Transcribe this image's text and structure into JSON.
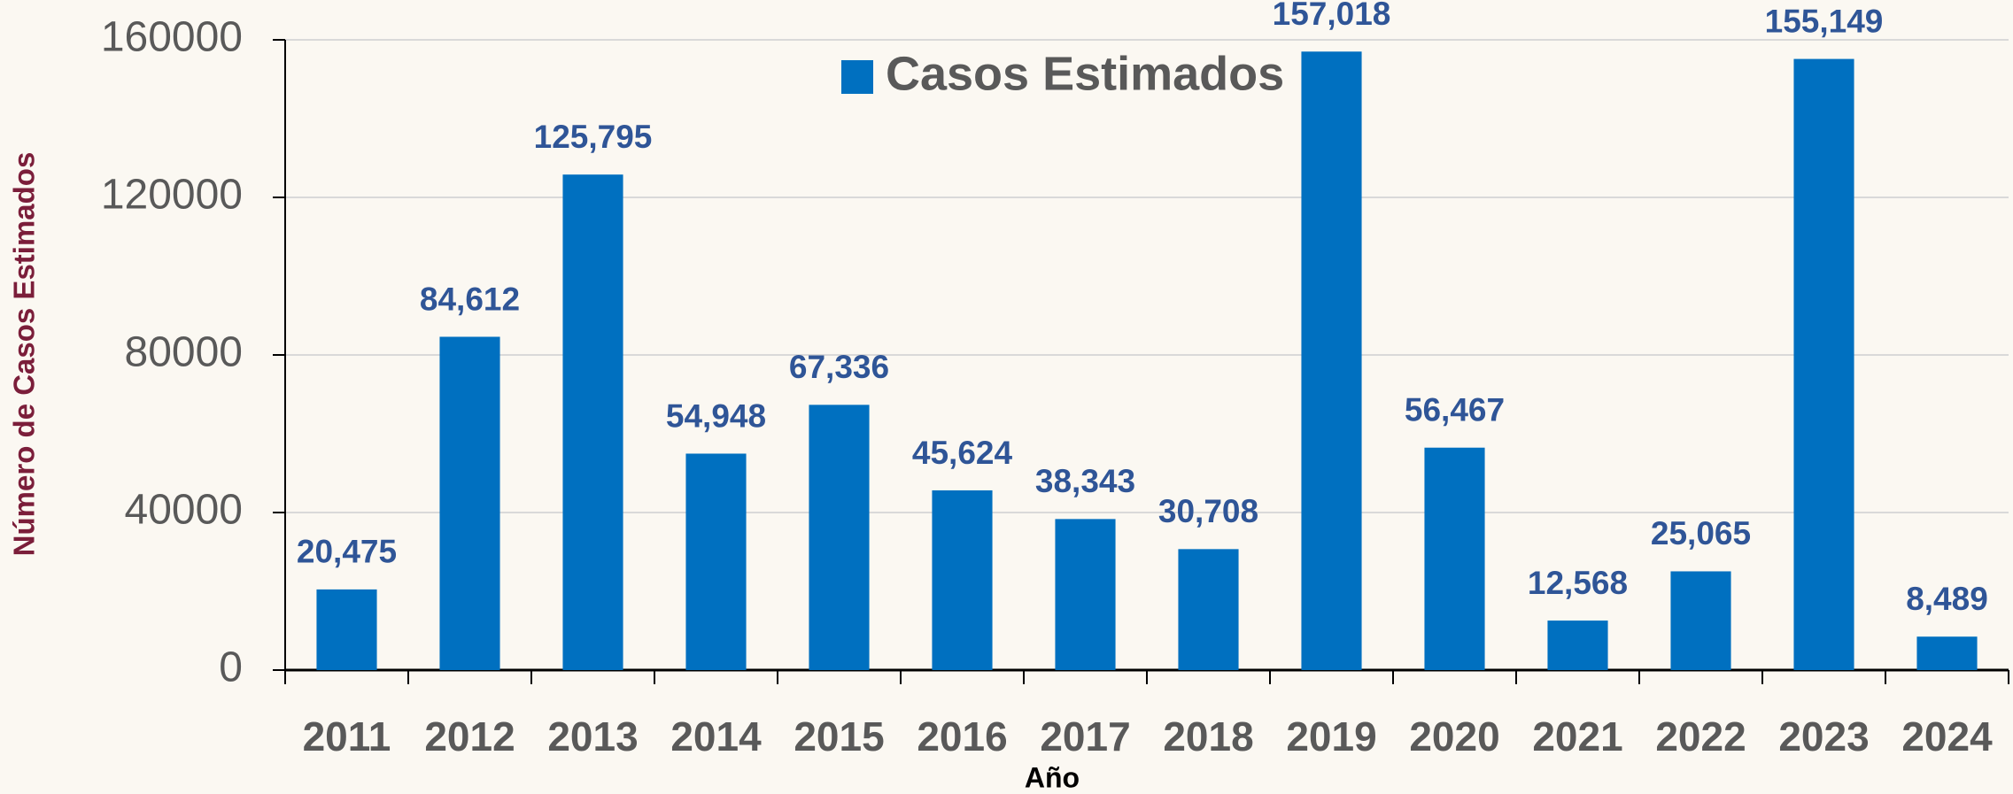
{
  "chart_data": {
    "type": "bar",
    "y_axis_label": "Número de Casos Estimados",
    "x_axis_label": "Año",
    "categories": [
      "2011",
      "2012",
      "2013",
      "2014",
      "2015",
      "2016",
      "2017",
      "2018",
      "2019",
      "2020",
      "2021",
      "2022",
      "2023",
      "2024"
    ],
    "series": [
      {
        "name": "Casos Estimados",
        "color": "#0070c0",
        "values": [
          20475,
          84612,
          125795,
          54948,
          67336,
          45624,
          38343,
          30708,
          157018,
          56467,
          12568,
          25065,
          155149,
          8489
        ],
        "value_labels": [
          "20,475",
          "84,612",
          "125,795",
          "54,948",
          "67,336",
          "45,624",
          "38,343",
          "30,708",
          "157,018",
          "56,467",
          "12,568",
          "25,065",
          "155,149",
          "8,489"
        ]
      }
    ],
    "ylim": [
      0,
      160000
    ],
    "yticks": [
      0,
      40000,
      80000,
      120000,
      160000
    ],
    "grid": true,
    "legend": "top"
  }
}
